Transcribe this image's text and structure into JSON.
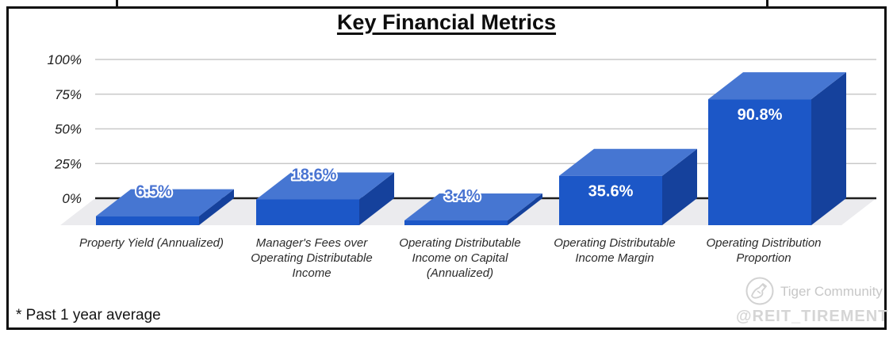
{
  "chart_data": {
    "type": "bar",
    "style": "3d-column",
    "title": "Key Financial Metrics",
    "categories": [
      [
        "Property Yield (Annualized)"
      ],
      [
        "Manager's Fees over",
        "Operating Distributable",
        "Income"
      ],
      [
        "Operating Distributable",
        "Income on Capital",
        "(Annualized)"
      ],
      [
        "Operating Distributable",
        "Income Margin"
      ],
      [
        "Operating Distribution",
        "Proportion"
      ]
    ],
    "values": [
      6.5,
      18.6,
      3.4,
      35.6,
      90.8
    ],
    "value_labels": [
      "6.5%",
      "18.6%",
      "3.4%",
      "35.6%",
      "90.8%"
    ],
    "y_ticks": [
      {
        "label": "0%",
        "value": 0
      },
      {
        "label": "25%",
        "value": 25
      },
      {
        "label": "50%",
        "value": 50
      },
      {
        "label": "75%",
        "value": 75
      },
      {
        "label": "100%",
        "value": 100
      }
    ],
    "ylim": [
      0,
      100
    ],
    "grid": true,
    "legend": "none",
    "colors": {
      "bar_front": "#1c57c7",
      "bar_top": "#4676d2",
      "bar_side": "#15419c",
      "floor": "#ebebee",
      "gridline": "#c9c9c9",
      "axis_line": "#1f1f1f",
      "label_inside": "#ffffff",
      "label_outside": "#4a74d2"
    }
  },
  "footnote": "* Past 1 year average",
  "watermark": {
    "logo_icon": "tiger-community-logo",
    "community": "Tiger Community",
    "handle": "@REIT_TIREMENT"
  }
}
